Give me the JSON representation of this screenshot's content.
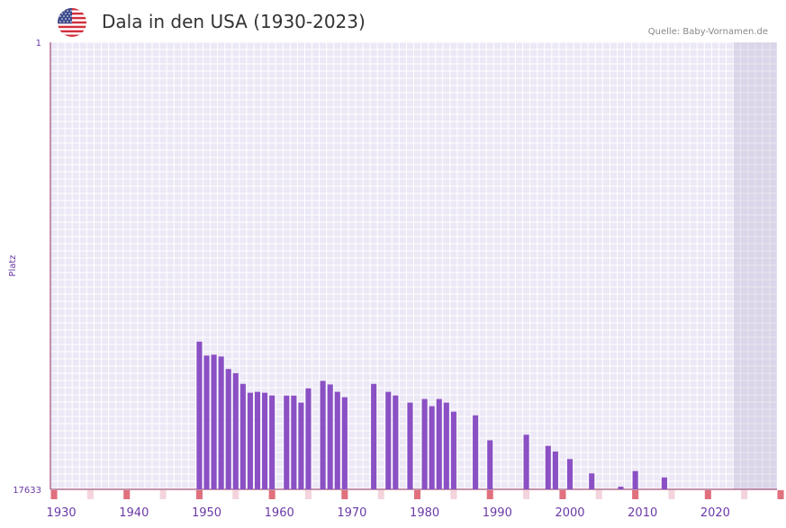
{
  "header": {
    "title": "Dala in den USA (1930-2023)",
    "source": "Quelle: Baby-Vornamen.de",
    "flag_icon": "us-flag-icon"
  },
  "chart_data": {
    "type": "bar",
    "title": "Dala in den USA (1930-2023)",
    "xlabel": "",
    "ylabel": "Platz",
    "y_axis_reversed": true,
    "ylim": [
      1,
      17633
    ],
    "ytick_labels": [
      "1",
      "17633"
    ],
    "xlim": [
      1929,
      2029
    ],
    "xtick_labels": [
      "1930",
      "1940",
      "1950",
      "1960",
      "1970",
      "1980",
      "1990",
      "2000",
      "2010",
      "2020"
    ],
    "bar_color": "#8a50c4",
    "x": [
      1949,
      1950,
      1951,
      1952,
      1953,
      1954,
      1955,
      1956,
      1957,
      1958,
      1959,
      1961,
      1962,
      1963,
      1964,
      1966,
      1967,
      1968,
      1969,
      1973,
      1975,
      1976,
      1978,
      1980,
      1981,
      1982,
      1983,
      1984,
      1987,
      1989,
      1994,
      1997,
      1998,
      2000,
      2003,
      2007,
      2009,
      2013
    ],
    "values": [
      11809,
      12357,
      12323,
      12394,
      12888,
      13052,
      13474,
      13824,
      13788,
      13824,
      13929,
      13935,
      13935,
      14211,
      13648,
      13354,
      13497,
      13788,
      14001,
      13474,
      13788,
      13929,
      14211,
      14071,
      14354,
      14071,
      14211,
      14571,
      14715,
      15698,
      15479,
      15918,
      16144,
      16440,
      17005,
      17530,
      16913,
      17166
    ],
    "rank_band_years": [
      1929,
      1934,
      1939,
      1944,
      1949,
      1954,
      1959,
      1964,
      1969,
      1974,
      1979,
      1984,
      1989,
      1994,
      1999,
      2004,
      2009,
      2014,
      2019,
      2024,
      2029
    ],
    "projection_start_year": 2023
  }
}
